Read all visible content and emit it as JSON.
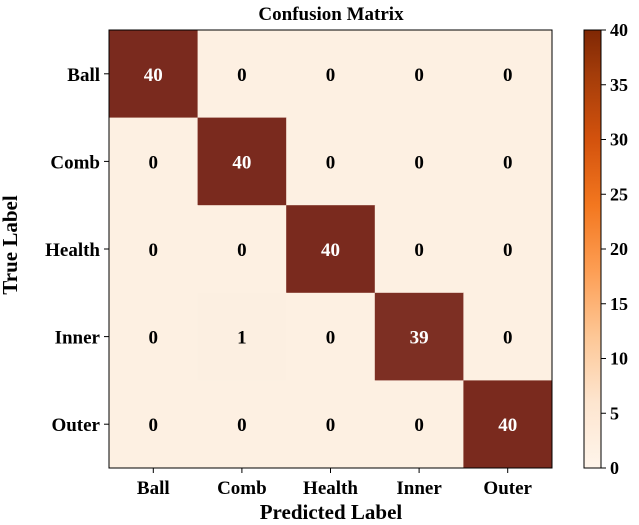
{
  "chart_data": {
    "type": "heatmap",
    "title": "Confusion Matrix",
    "xlabel": "Predicted Label",
    "ylabel": "True Label",
    "x_categories": [
      "Ball",
      "Comb",
      "Health",
      "Inner",
      "Outer"
    ],
    "y_categories": [
      "Ball",
      "Comb",
      "Health",
      "Inner",
      "Outer"
    ],
    "values": [
      [
        40,
        0,
        0,
        0,
        0
      ],
      [
        0,
        40,
        0,
        0,
        0
      ],
      [
        0,
        0,
        40,
        0,
        0
      ],
      [
        0,
        1,
        0,
        39,
        0
      ],
      [
        0,
        0,
        0,
        0,
        40
      ]
    ],
    "colorbar": {
      "min": 0,
      "max": 40,
      "ticks": [
        0,
        5,
        10,
        15,
        20,
        25,
        30,
        35,
        40
      ],
      "colormap": "Oranges"
    },
    "colors": {
      "low": "#fdf0e2",
      "high": "#7a2a1e",
      "text_dark": "#000000",
      "text_light": "#ffffff"
    }
  }
}
